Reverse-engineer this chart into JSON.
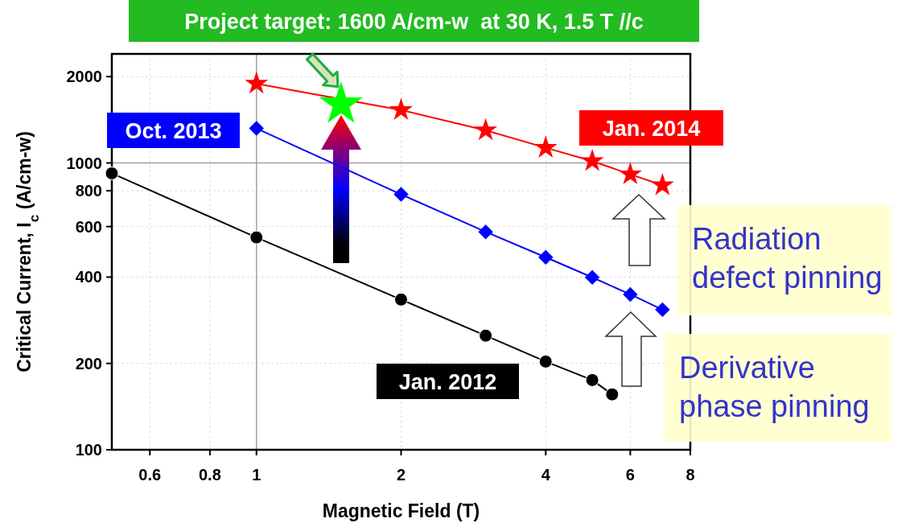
{
  "chart_data": {
    "type": "line",
    "xlabel": "Magnetic Field (T)",
    "ylabel": "Critical Current, I$_{c}$ (A/cm-w)",
    "log": "xy",
    "xlim": [
      0.5,
      8
    ],
    "xticks": [
      0.6,
      0.8,
      1,
      2,
      4,
      6,
      8
    ],
    "ylim": [
      100,
      2400
    ],
    "yticks": [
      100,
      200,
      400,
      600,
      800,
      1000,
      2000
    ],
    "grid": true,
    "line_style": "solid",
    "series": [
      {
        "name": "Jan. 2012",
        "color": "#000000",
        "marker": "circle",
        "x": [
          0.5,
          1,
          2,
          3,
          4,
          5,
          5.5
        ],
        "values": [
          920,
          550,
          334,
          250,
          203,
          175,
          156
        ]
      },
      {
        "name": "Oct. 2013",
        "color": "#0000ff",
        "marker": "diamond",
        "x": [
          1,
          2,
          3,
          4,
          5,
          6,
          7
        ],
        "values": [
          1320,
          777,
          575,
          469,
          399,
          348,
          308
        ]
      },
      {
        "name": "Jan. 2014",
        "color": "#ff0000",
        "marker": "star",
        "x": [
          1,
          2,
          3,
          4,
          5,
          6,
          7
        ],
        "values": [
          1890,
          1530,
          1300,
          1130,
          1015,
          913,
          836
        ]
      },
      {
        "type": "scatter",
        "color": "#00ff00",
        "marker": "star",
        "x": [
          1.5
        ],
        "values": [
          1600
        ]
      }
    ],
    "annotations": [
      "Project target: 1600 A/cm-w  at 30 K, 1.5 T //c",
      "Radiation defect pinning",
      "Derivative phase pinning"
    ]
  }
}
